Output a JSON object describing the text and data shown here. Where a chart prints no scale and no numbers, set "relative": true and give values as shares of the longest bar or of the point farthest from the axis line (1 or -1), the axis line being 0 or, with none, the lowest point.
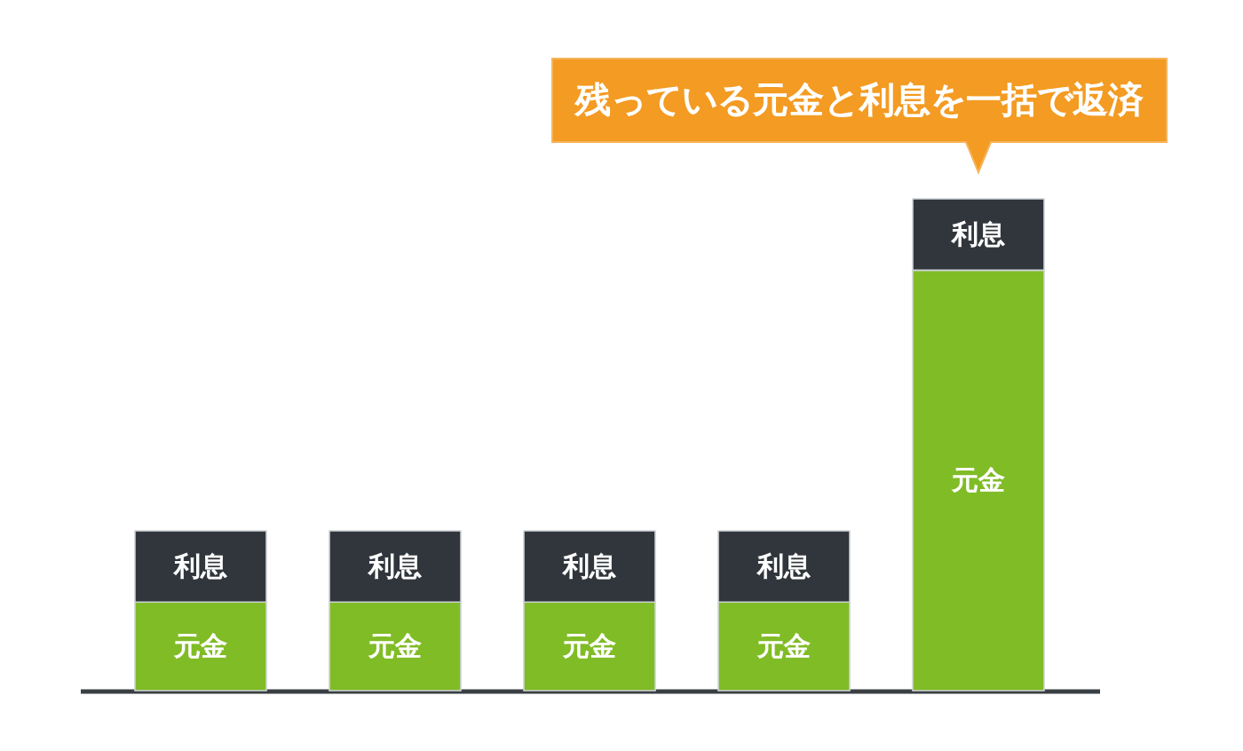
{
  "chart_data": {
    "type": "bar",
    "stacked": true,
    "relative": true,
    "categories": [
      null,
      null,
      null,
      null,
      null
    ],
    "series": [
      {
        "name": "元金",
        "color": "#80bc26",
        "values": [
          0.18,
          0.18,
          0.18,
          0.18,
          0.855
        ]
      },
      {
        "name": "利息",
        "color": "#30363b",
        "values": [
          0.145,
          0.145,
          0.145,
          0.145,
          0.145
        ]
      }
    ],
    "annotations": [
      "残っている元金と利息を一括で返済"
    ]
  }
}
